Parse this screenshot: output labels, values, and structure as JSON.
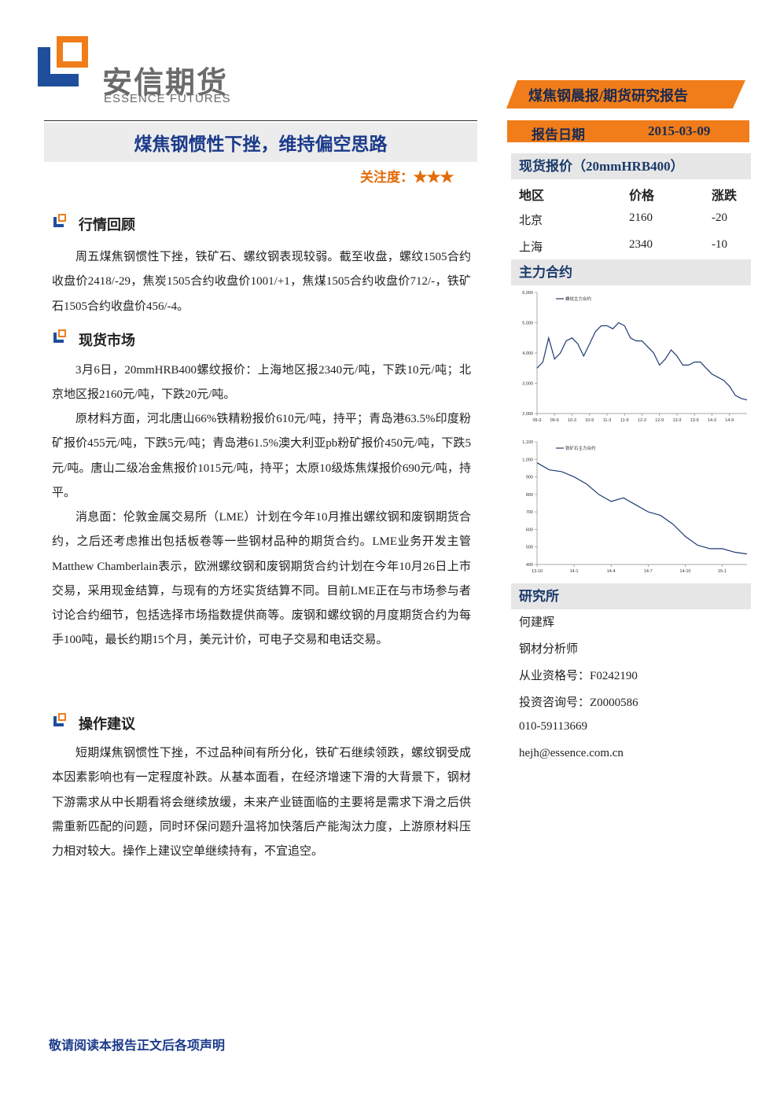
{
  "logo": {
    "name": "安信期货",
    "name_en": "ESSENCE FUTURES"
  },
  "banner": "煤焦钢晨报/期货研究报告",
  "report_date": {
    "label": "报告日期",
    "value": "2015-03-09"
  },
  "title": "煤焦钢惯性下挫，维持偏空思路",
  "attention": {
    "label": "关注度：",
    "stars": "★★★"
  },
  "sections": [
    {
      "heading": "行情回顾",
      "paragraphs": [
        "周五煤焦钢惯性下挫，铁矿石、螺纹钢表现较弱。截至收盘，螺纹1505合约收盘价2418/-29，焦炭1505合约收盘价1001/+1，焦煤1505合约收盘价712/-，铁矿石1505合约收盘价456/-4。"
      ]
    },
    {
      "heading": "现货市场",
      "paragraphs": [
        "3月6日，20mmHRB400螺纹报价：上海地区报2340元/吨，下跌10元/吨；北京地区报2160元/吨，下跌20元/吨。",
        "原材料方面，河北唐山66%铁精粉报价610元/吨，持平；青岛港63.5%印度粉矿报价455元/吨，下跌5元/吨；青岛港61.5%澳大利亚pb粉矿报价450元/吨，下跌5元/吨。唐山二级冶金焦报价1015元/吨，持平；太原10级炼焦煤报价690元/吨，持平。",
        "消息面：伦敦金属交易所（LME）计划在今年10月推出螺纹钢和废钢期货合约，之后还考虑推出包括板卷等一些钢材品种的期货合约。LME业务开发主管Matthew Chamberlain表示，欧洲螺纹钢和废钢期货合约计划在今年10月26日上市交易，采用现金结算，与现有的方坯实货结算不同。目前LME正在与市场参与者讨论合约细节，包括选择市场指数提供商等。废钢和螺纹钢的月度期货合约为每手100吨，最长约期15个月，美元计价，可电子交易和电话交易。"
      ]
    },
    {
      "heading": "操作建议",
      "paragraphs": [
        "短期煤焦钢惯性下挫，不过品种间有所分化，铁矿石继续领跌，螺纹钢受成本因素影响也有一定程度补跌。从基本面看，在经济增速下滑的大背景下，钢材下游需求从中长期看将会继续放缓，未来产业链面临的主要将是需求下滑之后供需重新匹配的问题，同时环保问题升温将加快落后产能淘汰力度，上游原材料压力相对较大。操作上建议空单继续持有，不宜追空。"
      ]
    }
  ],
  "spot": {
    "title": "现货报价（20mmHRB400）",
    "columns": [
      "地区",
      "价格",
      "涨跌"
    ],
    "rows": [
      [
        "北京",
        "2160",
        "-20"
      ],
      [
        "上海",
        "2340",
        "-10"
      ]
    ]
  },
  "contracts_title": "主力合约",
  "chart_data": [
    {
      "type": "line",
      "categories": [
        "09-3",
        null,
        null,
        "09-9",
        null,
        null,
        "10-3",
        null,
        null,
        "10-9",
        null,
        null,
        "11-3",
        null,
        null,
        "11-9",
        null,
        null,
        "12-3",
        null,
        null,
        "12-9",
        null,
        null,
        "13-3",
        null,
        null,
        "13-9",
        null,
        null,
        "14-3",
        null,
        null,
        "14-9",
        null,
        null,
        null
      ],
      "series": [
        {
          "name": "螺纹主力合约",
          "color": "#1f3a73",
          "values": [
            3500,
            3700,
            4500,
            3800,
            4000,
            4400,
            4500,
            4300,
            3900,
            4300,
            4700,
            4900,
            4900,
            4800,
            5000,
            4900,
            4500,
            4400,
            4400,
            4200,
            4000,
            3600,
            3800,
            4100,
            3900,
            3600,
            3600,
            3700,
            3700,
            3500,
            3300,
            3200,
            3100,
            2900,
            2600,
            2500,
            2450
          ]
        }
      ],
      "ylim": [
        2000,
        6000
      ],
      "yticks": [
        {
          "value": 2000,
          "label": "2,000"
        },
        {
          "value": 3000,
          "label": "3,000"
        },
        {
          "value": 4000,
          "label": "4,000"
        },
        {
          "value": 5000,
          "label": "5,000"
        },
        {
          "value": 6000,
          "label": "6,000"
        }
      ]
    },
    {
      "type": "line",
      "categories": [
        "13-10",
        null,
        null,
        "14-1",
        null,
        null,
        "14-4",
        null,
        null,
        "14-7",
        null,
        null,
        "14-10",
        null,
        null,
        "15-1",
        null,
        null
      ],
      "series": [
        {
          "name": "铁矿石主力合约",
          "color": "#1f3a73",
          "values": [
            980,
            940,
            930,
            900,
            860,
            800,
            760,
            780,
            740,
            700,
            680,
            630,
            560,
            510,
            490,
            490,
            470,
            460
          ]
        }
      ],
      "ylim": [
        400,
        1100
      ],
      "yticks": [
        400,
        500,
        600,
        700,
        800,
        900,
        {
          "value": 1000,
          "label": "1,000"
        },
        {
          "value": 1100,
          "label": "1,100"
        }
      ]
    }
  ],
  "research": {
    "title": "研究所",
    "lines": [
      "何建辉",
      "钢材分析师",
      "从业资格号：F0242190",
      "投资咨询号：Z0000586",
      "010-59113669",
      "hejh@essence.com.cn"
    ]
  },
  "footer": "敬请阅读本报告正文后各项声明"
}
